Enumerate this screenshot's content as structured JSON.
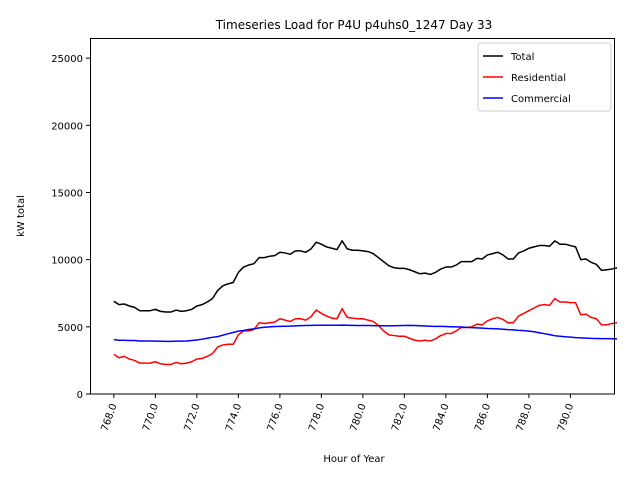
{
  "chart_data": {
    "type": "line",
    "title": "Timeseries Load for P4U p4uhs0_1247  Day 33",
    "xlabel": "Hour of Year",
    "ylabel": "kW total",
    "xlim": [
      766.85,
      792.15
    ],
    "ylim": [
      0,
      26500
    ],
    "xticks": [
      768,
      770,
      772,
      774,
      776,
      778,
      780,
      782,
      784,
      786,
      788,
      790
    ],
    "xtick_labels": [
      "768.0",
      "770.0",
      "772.0",
      "774.0",
      "776.0",
      "778.0",
      "780.0",
      "782.0",
      "784.0",
      "786.0",
      "788.0",
      "790.0"
    ],
    "yticks": [
      0,
      5000,
      10000,
      15000,
      20000,
      25000
    ],
    "ytick_labels": [
      "0",
      "5000",
      "10000",
      "15000",
      "20000",
      "25000"
    ],
    "legend_position": "top-right",
    "grid": false,
    "x_start": 768,
    "x_step": 0.25,
    "series": [
      {
        "name": "Total",
        "color": "#000000",
        "values": [
          6900,
          6650,
          6700,
          6550,
          6450,
          6200,
          6200,
          6200,
          6300,
          6150,
          6100,
          6100,
          6250,
          6150,
          6200,
          6300,
          6550,
          6650,
          6850,
          7100,
          7700,
          8050,
          8200,
          8300,
          9050,
          9450,
          9600,
          9700,
          10150,
          10150,
          10250,
          10300,
          10550,
          10500,
          10400,
          10650,
          10650,
          10550,
          10800,
          11300,
          11150,
          10950,
          10850,
          10750,
          11400,
          10800,
          10700,
          10700,
          10650,
          10600,
          10450,
          10150,
          9850,
          9550,
          9400,
          9350,
          9350,
          9250,
          9100,
          8950,
          9000,
          8900,
          9050,
          9300,
          9450,
          9450,
          9600,
          9850,
          9850,
          9850,
          10100,
          10050,
          10350,
          10450,
          10550,
          10350,
          10050,
          10050,
          10500,
          10650,
          10850,
          10950,
          11050,
          11050,
          11000,
          11400,
          11150,
          11150,
          11050,
          10950,
          10000,
          10050,
          9800,
          9650,
          9200,
          9250,
          9300,
          9400
        ]
      },
      {
        "name": "Residential",
        "color": "#ff0000",
        "values": [
          2950,
          2700,
          2800,
          2600,
          2500,
          2300,
          2300,
          2300,
          2400,
          2250,
          2200,
          2200,
          2350,
          2250,
          2300,
          2400,
          2600,
          2650,
          2800,
          3000,
          3500,
          3650,
          3700,
          3700,
          4400,
          4700,
          4700,
          4800,
          5300,
          5250,
          5300,
          5350,
          5600,
          5500,
          5400,
          5600,
          5600,
          5500,
          5750,
          6250,
          6000,
          5800,
          5650,
          5600,
          6350,
          5700,
          5650,
          5600,
          5600,
          5500,
          5400,
          5100,
          4700,
          4400,
          4350,
          4300,
          4300,
          4150,
          4000,
          3950,
          4000,
          3950,
          4100,
          4350,
          4500,
          4500,
          4700,
          4950,
          4950,
          5000,
          5200,
          5150,
          5450,
          5600,
          5700,
          5550,
          5300,
          5300,
          5800,
          6000,
          6200,
          6400,
          6600,
          6650,
          6600,
          7100,
          6850,
          6850,
          6800,
          6800,
          5900,
          5950,
          5700,
          5600,
          5150,
          5150,
          5250,
          5300
        ]
      },
      {
        "name": "Commercial",
        "color": "#0000ff",
        "values": [
          4050,
          4000,
          4000,
          3980,
          3980,
          3950,
          3950,
          3950,
          3940,
          3930,
          3920,
          3920,
          3940,
          3940,
          3950,
          3980,
          4020,
          4080,
          4150,
          4220,
          4270,
          4380,
          4480,
          4580,
          4680,
          4730,
          4800,
          4850,
          4920,
          4970,
          5000,
          5020,
          5030,
          5040,
          5050,
          5070,
          5090,
          5100,
          5110,
          5120,
          5120,
          5120,
          5120,
          5120,
          5130,
          5120,
          5110,
          5100,
          5100,
          5100,
          5090,
          5080,
          5080,
          5070,
          5080,
          5090,
          5100,
          5110,
          5100,
          5080,
          5060,
          5040,
          5030,
          5030,
          5020,
          5010,
          5000,
          4990,
          4960,
          4940,
          4920,
          4900,
          4880,
          4870,
          4850,
          4820,
          4790,
          4770,
          4740,
          4720,
          4680,
          4630,
          4560,
          4490,
          4420,
          4340,
          4300,
          4260,
          4230,
          4200,
          4180,
          4160,
          4140,
          4130,
          4120,
          4120,
          4110,
          4100
        ]
      }
    ]
  }
}
